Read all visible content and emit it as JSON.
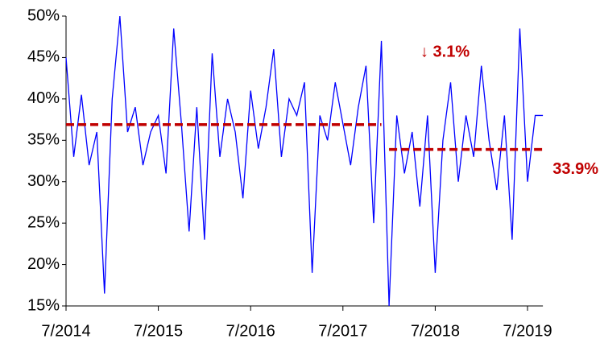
{
  "chart_data": {
    "type": "line",
    "x": [
      "2014-07",
      "2014-08",
      "2014-09",
      "2014-10",
      "2014-11",
      "2014-12",
      "2015-01",
      "2015-02",
      "2015-03",
      "2015-04",
      "2015-05",
      "2015-06",
      "2015-07",
      "2015-08",
      "2015-09",
      "2015-10",
      "2015-11",
      "2015-12",
      "2016-01",
      "2016-02",
      "2016-03",
      "2016-04",
      "2016-05",
      "2016-06",
      "2016-07",
      "2016-08",
      "2016-09",
      "2016-10",
      "2016-11",
      "2016-12",
      "2017-01",
      "2017-02",
      "2017-03",
      "2017-04",
      "2017-05",
      "2017-06",
      "2017-07",
      "2017-08",
      "2017-09",
      "2017-10",
      "2017-11",
      "2017-12",
      "2018-01",
      "2018-02",
      "2018-03",
      "2018-04",
      "2018-05",
      "2018-06",
      "2018-07",
      "2018-08",
      "2018-09",
      "2018-10",
      "2018-11",
      "2018-12",
      "2019-01",
      "2019-02",
      "2019-03",
      "2019-04",
      "2019-05",
      "2019-06",
      "2019-07",
      "2019-08",
      "2019-09"
    ],
    "series": [
      {
        "color": "#0000ff",
        "values": [
          45,
          33,
          40.5,
          32,
          36,
          16.5,
          40,
          50,
          36,
          39,
          32,
          36,
          38,
          31,
          48.5,
          37,
          24,
          39,
          23,
          45.5,
          33,
          40,
          36,
          28,
          41,
          34,
          39,
          46,
          33,
          40,
          38,
          42,
          19,
          38,
          35,
          42,
          37,
          32,
          39,
          44,
          25,
          47,
          15,
          38,
          31,
          36,
          27,
          38,
          19,
          35,
          42,
          30,
          38,
          33,
          44,
          35,
          29,
          38,
          23,
          48.5,
          30,
          38,
          38
        ]
      }
    ],
    "xlim": [
      "2014-07",
      "2019-09"
    ],
    "xticks": [
      {
        "value": "2014-07",
        "label": "7/2014"
      },
      {
        "value": "2015-07",
        "label": "7/2015"
      },
      {
        "value": "2016-07",
        "label": "7/2016"
      },
      {
        "value": "2017-07",
        "label": "7/2017"
      },
      {
        "value": "2018-07",
        "label": "7/2018"
      },
      {
        "value": "2019-07",
        "label": "7/2019"
      }
    ],
    "ylim": [
      15,
      50
    ],
    "yticks": [
      {
        "value": 15,
        "label": "15%"
      },
      {
        "value": 20,
        "label": "20%"
      },
      {
        "value": 25,
        "label": "25%"
      },
      {
        "value": 30,
        "label": "30%"
      },
      {
        "value": 35,
        "label": "35%"
      },
      {
        "value": 40,
        "label": "40%"
      },
      {
        "value": 45,
        "label": "45%"
      },
      {
        "value": 50,
        "label": "50%"
      }
    ],
    "reference_lines": [
      {
        "value": 36.9,
        "start": "2014-07",
        "end": "2017-12",
        "color": "#c00000"
      },
      {
        "value": 33.9,
        "start": "2018-01",
        "end": "2019-09",
        "color": "#c00000",
        "label": "33.9%"
      }
    ],
    "annotation": "↓ 3.1%"
  }
}
